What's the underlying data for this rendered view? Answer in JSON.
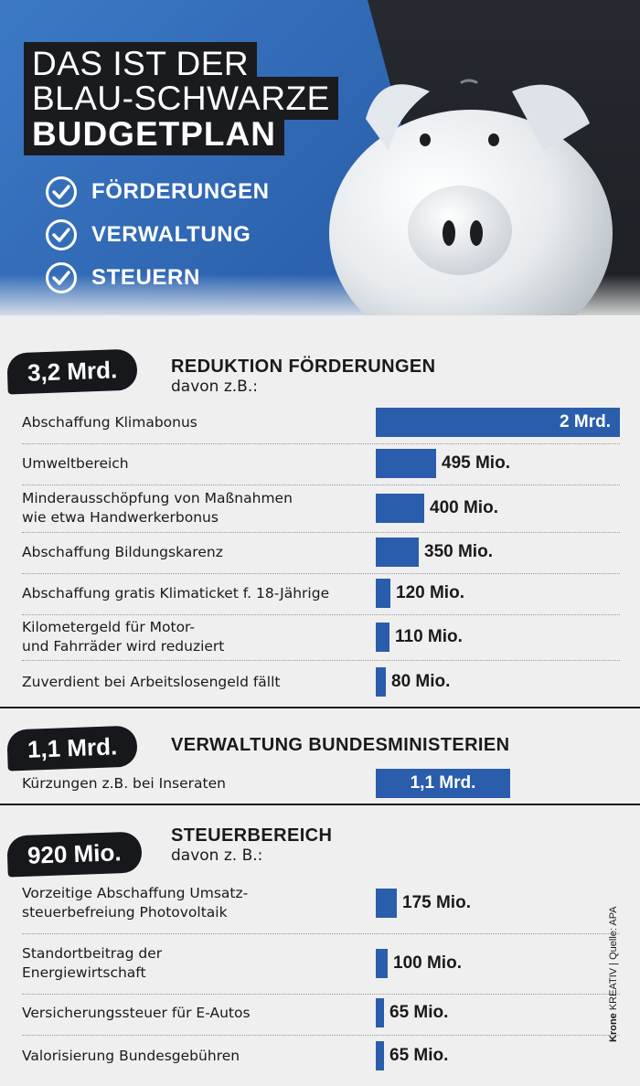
{
  "header": {
    "title_line1": "DAS IST DER",
    "title_line2": "BLAU-SCHWARZE",
    "title_line3": "BUDGETPLAN",
    "checks": [
      "FÖRDERUNGEN",
      "VERWALTUNG",
      "STEUERN"
    ]
  },
  "colors": {
    "bar": "#2a5dab",
    "header_blue": "#2d64b0",
    "badge": "#16181c"
  },
  "sections": [
    {
      "badge": "3,2 Mrd.",
      "title": "REDUKTION FÖRDERUNGEN",
      "subtitle": "davon z.B.:"
    },
    {
      "badge": "1,1 Mrd.",
      "title": "VERWALTUNG BUNDESMINISTERIEN",
      "subtitle": ""
    },
    {
      "badge": "920 Mio.",
      "title": "STEUERBEREICH",
      "subtitle": "davon z. B.:"
    }
  ],
  "chart_data": {
    "type": "bar",
    "orientation": "horizontal",
    "unit": "Mio. €",
    "groups": [
      {
        "section": "REDUKTION FÖRDERUNGEN",
        "total_label": "3,2 Mrd.",
        "items": [
          {
            "label": "Abschaffung Klimabonus",
            "value": 2000,
            "value_label": "2 Mrd."
          },
          {
            "label": "Umweltbereich",
            "value": 495,
            "value_label": "495 Mio."
          },
          {
            "label": "Minderausschöpfung von Maßnahmen\nwie etwa Handwerkerbonus",
            "value": 400,
            "value_label": "400 Mio."
          },
          {
            "label": "Abschaffung Bildungskarenz",
            "value": 350,
            "value_label": "350 Mio."
          },
          {
            "label": "Abschaffung gratis Klimaticket f. 18-Jährige",
            "value": 120,
            "value_label": "120 Mio."
          },
          {
            "label": "Kilometergeld für Motor-\nund Fahrräder wird reduziert",
            "value": 110,
            "value_label": "110 Mio."
          },
          {
            "label": "Zuverdient bei Arbeitslosengeld fällt",
            "value": 80,
            "value_label": "80 Mio."
          }
        ]
      },
      {
        "section": "VERWALTUNG BUNDESMINISTERIEN",
        "total_label": "1,1 Mrd.",
        "items": [
          {
            "label": "Kürzungen z.B. bei Inseraten",
            "value": 1100,
            "value_label": "1,1 Mrd."
          }
        ]
      },
      {
        "section": "STEUERBEREICH",
        "total_label": "920 Mio.",
        "items": [
          {
            "label": "Vorzeitige Abschaffung Umsatz-\nsteuerbefreiung Photovoltaik",
            "value": 175,
            "value_label": "175 Mio."
          },
          {
            "label": "Standortbeitrag der\nEnergiewirtschaft",
            "value": 100,
            "value_label": "100 Mio."
          },
          {
            "label": "Versicherungssteuer für E-Autos",
            "value": 65,
            "value_label": "65 Mio."
          },
          {
            "label": "Valorisierung Bundesgebühren",
            "value": 65,
            "value_label": "65 Mio."
          }
        ]
      }
    ]
  },
  "credit": {
    "brand": "Krone",
    "dept": "KREATIV",
    "source": "Quelle: APA"
  }
}
